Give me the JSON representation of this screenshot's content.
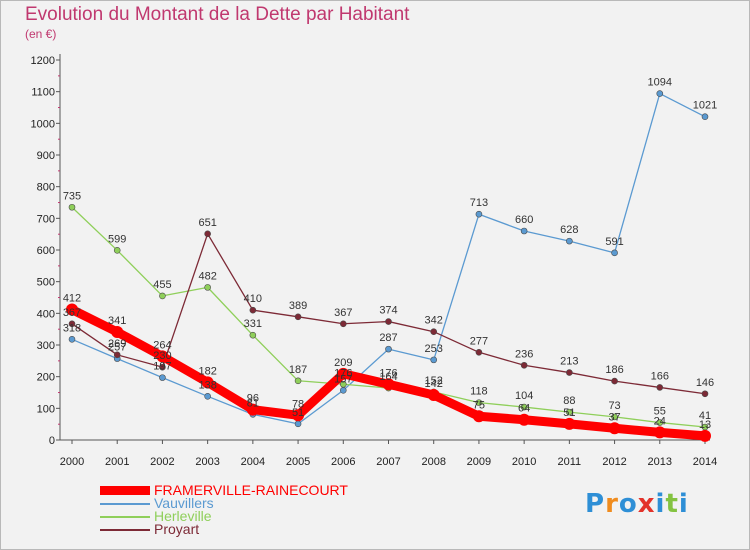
{
  "header": {
    "title": "Evolution du Montant de la Dette par Habitant",
    "unit": "(en €)"
  },
  "logo": {
    "text": "Proxiti",
    "letter_colors": [
      "#2e8fd6",
      "#f08c1e",
      "#2e8fd6",
      "#e3332b",
      "#2e8fd6",
      "#84c341",
      "#2e8fd6"
    ]
  },
  "chart_data": {
    "type": "line",
    "title": "Evolution du Montant de la Dette par Habitant",
    "subtitle": "(en €)",
    "xlabel": "",
    "ylabel": "",
    "x": [
      "2000",
      "2001",
      "2002",
      "2003",
      "2004",
      "2005",
      "2006",
      "2007",
      "2008",
      "2009",
      "2010",
      "2011",
      "2012",
      "2013",
      "2014"
    ],
    "ylim": [
      0,
      1200
    ],
    "yticks": [
      0,
      100,
      200,
      300,
      400,
      500,
      600,
      700,
      800,
      900,
      1000,
      1100,
      1200
    ],
    "grid": false,
    "legend": "bottom-left",
    "series": [
      {
        "name": "FRAMERVILLE-RAINECOURT",
        "color": "#ff0000",
        "values": [
          412,
          341,
          264,
          182,
          96,
          78,
          209,
          176,
          142,
          75,
          64,
          51,
          37,
          24,
          13
        ],
        "labels": [
          "412",
          "341",
          "264",
          "182",
          "96",
          "78",
          "209",
          "176",
          "142",
          "75",
          "64",
          "51",
          "37",
          "24",
          "13"
        ]
      },
      {
        "name": "Vauvillers",
        "color": "#5b9ad1",
        "values": [
          318,
          257,
          197,
          138,
          81,
          51,
          157,
          287,
          253,
          713,
          660,
          628,
          591,
          1094,
          1021
        ],
        "labels": [
          "318",
          "257",
          "197",
          "138",
          "81",
          "51",
          "157",
          "287",
          "253",
          "713",
          "660",
          "628",
          "591",
          "1094",
          "1021"
        ]
      },
      {
        "name": "Herleville",
        "color": "#8fcf5a",
        "values": [
          735,
          599,
          455,
          482,
          331,
          187,
          176,
          164,
          152,
          118,
          104,
          88,
          73,
          55,
          41
        ],
        "labels": [
          "735",
          "599",
          "455",
          "482",
          "331",
          "187",
          "176",
          "164",
          "152",
          "118",
          "104",
          "88",
          "73",
          "55",
          "41"
        ]
      },
      {
        "name": "Proyart",
        "color": "#7d2a36",
        "values": [
          367,
          269,
          230,
          651,
          410,
          389,
          367,
          374,
          342,
          277,
          236,
          213,
          186,
          166,
          146
        ],
        "labels": [
          "367",
          "269",
          "230",
          "651",
          "410",
          "389",
          "367",
          "374",
          "342",
          "277",
          "236",
          "213",
          "186",
          "166",
          "146"
        ]
      }
    ]
  }
}
